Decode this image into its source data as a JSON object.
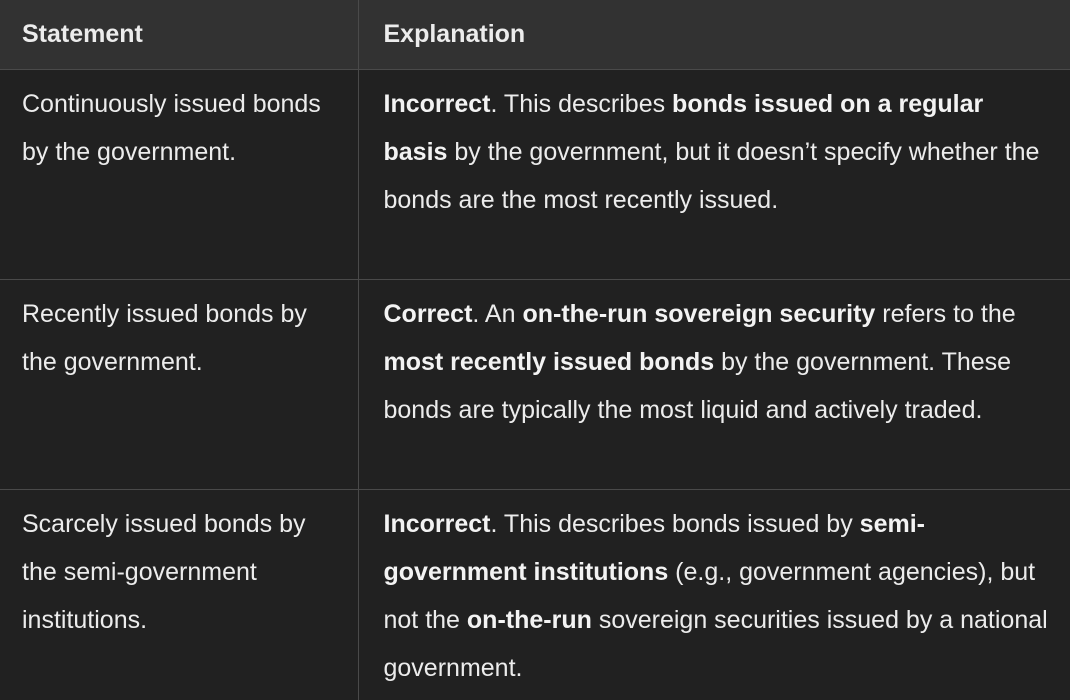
{
  "table": {
    "headers": [
      "Statement",
      "Explanation"
    ],
    "rows": [
      {
        "statement": "Continuously issued bonds by the government.",
        "explanation": [
          {
            "text": "Incorrect",
            "bold": true
          },
          {
            "text": ". This describes ",
            "bold": false
          },
          {
            "text": "bonds issued on a regular basis",
            "bold": true
          },
          {
            "text": " by the government, but it doesn’t specify whether the bonds are the most recently issued.",
            "bold": false
          }
        ]
      },
      {
        "statement": "Recently issued bonds by the government.",
        "explanation": [
          {
            "text": "Correct",
            "bold": true
          },
          {
            "text": ". An ",
            "bold": false
          },
          {
            "text": "on-the-run sovereign security",
            "bold": true
          },
          {
            "text": " refers to the ",
            "bold": false
          },
          {
            "text": "most recently issued bonds",
            "bold": true
          },
          {
            "text": " by the government. These bonds are typically the most liquid and actively traded.",
            "bold": false
          }
        ]
      },
      {
        "statement": "Scarcely issued bonds by the semi-government institutions.",
        "explanation": [
          {
            "text": "Incorrect",
            "bold": true
          },
          {
            "text": ". This describes bonds issued by ",
            "bold": false
          },
          {
            "text": "semi-government institutions",
            "bold": true
          },
          {
            "text": " (e.g., government agencies), but not the ",
            "bold": false
          },
          {
            "text": "on-the-run",
            "bold": true
          },
          {
            "text": " sovereign securities issued by a national government.",
            "bold": false
          }
        ]
      }
    ]
  }
}
